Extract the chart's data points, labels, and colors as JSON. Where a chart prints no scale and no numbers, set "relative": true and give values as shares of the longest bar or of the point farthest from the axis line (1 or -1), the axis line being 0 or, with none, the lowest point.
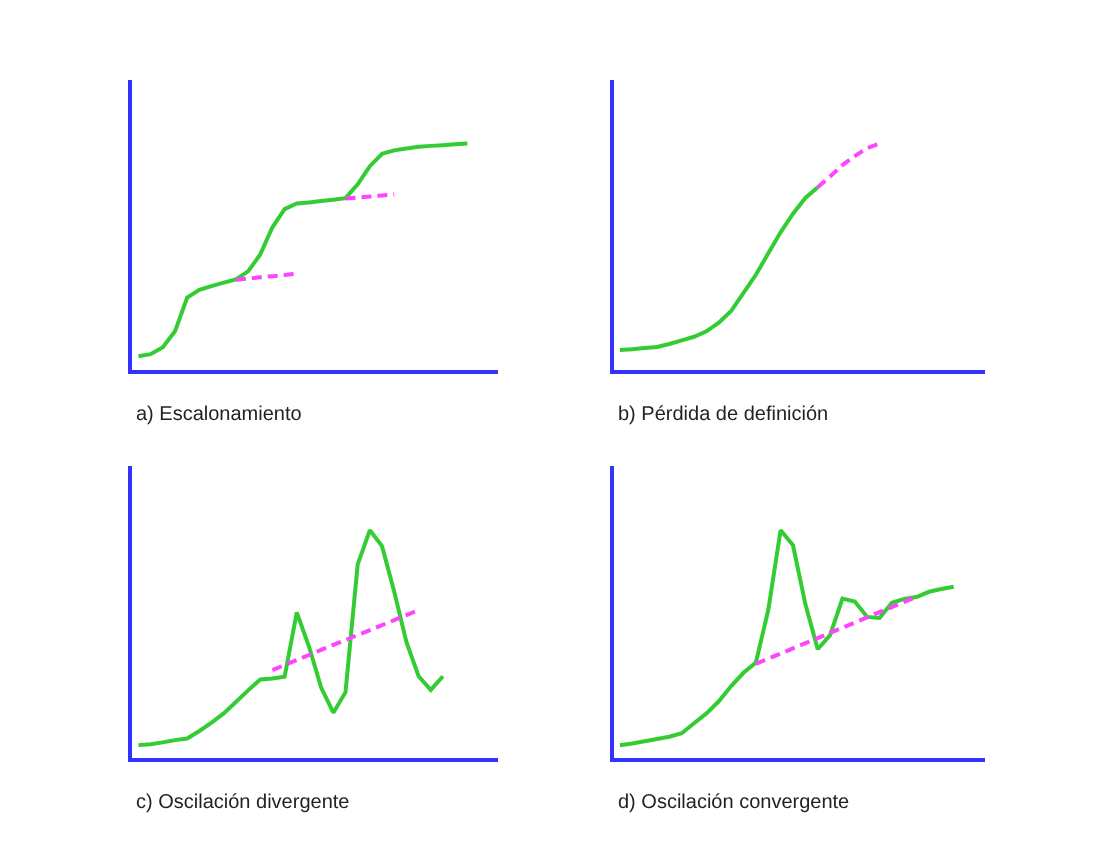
{
  "chart_data": [
    {
      "type": "line",
      "title": "a) Escalonamiento",
      "relative": true,
      "marker": "none",
      "categories": [
        null,
        null,
        null,
        null,
        null,
        null,
        null,
        null,
        null,
        null,
        null,
        null,
        null,
        null,
        null,
        null,
        null,
        null,
        null,
        null,
        null,
        null,
        null,
        null,
        null,
        null,
        null,
        null,
        null,
        null
      ],
      "series": [
        {
          "color": "#33cc33",
          "line_style": "solid",
          "values": [
            0.06,
            0.069,
            0.1,
            0.17,
            0.319,
            0.354,
            0.37,
            0.385,
            0.4,
            0.435,
            0.51,
            0.63,
            0.71,
            0.735,
            0.74,
            0.746,
            0.752,
            0.759,
            0.82,
            0.9,
            0.955,
            0.97,
            0.978,
            0.986,
            0.99,
            0.993,
            0.997,
            1.0,
            null,
            null
          ]
        },
        {
          "color": "#ff44ff",
          "line_style": "dashed",
          "values": [
            null,
            null,
            null,
            null,
            null,
            null,
            null,
            null,
            0.398,
            0.403,
            0.409,
            0.414,
            0.419,
            0.425,
            null,
            null,
            null,
            null,
            null,
            null,
            null,
            null,
            null,
            null,
            null,
            null,
            null,
            null,
            null,
            null
          ]
        },
        {
          "color": "#ff44ff",
          "line_style": "dashed",
          "values": [
            null,
            null,
            null,
            null,
            null,
            null,
            null,
            null,
            null,
            null,
            null,
            null,
            null,
            null,
            null,
            null,
            null,
            0.757,
            0.762,
            0.766,
            0.771,
            0.775,
            null,
            null,
            null,
            null,
            null,
            null,
            null,
            null
          ]
        }
      ]
    },
    {
      "type": "line",
      "title": "b) Pérdida de definición",
      "relative": true,
      "marker": "none",
      "categories": [
        null,
        null,
        null,
        null,
        null,
        null,
        null,
        null,
        null,
        null,
        null,
        null,
        null,
        null,
        null,
        null,
        null,
        null,
        null,
        null,
        null,
        null,
        null,
        null,
        null,
        null,
        null,
        null,
        null,
        null
      ],
      "series": [
        {
          "color": "#33cc33",
          "line_style": "solid",
          "values": [
            0.087,
            0.091,
            0.096,
            0.101,
            0.114,
            0.13,
            0.146,
            0.17,
            0.208,
            0.26,
            0.34,
            0.42,
            0.515,
            0.608,
            0.69,
            0.76,
            0.807,
            null,
            null,
            null,
            null,
            null,
            null,
            null,
            null,
            null,
            null,
            null,
            null,
            null
          ]
        },
        {
          "color": "#ff44ff",
          "line_style": "dashed",
          "values": [
            null,
            null,
            null,
            null,
            null,
            null,
            null,
            null,
            null,
            null,
            null,
            null,
            null,
            null,
            null,
            null,
            0.807,
            0.855,
            0.905,
            0.945,
            0.98,
            1.0,
            null,
            null,
            null,
            null,
            null,
            null,
            null,
            null
          ]
        }
      ]
    },
    {
      "type": "line",
      "title": "c) Oscilación divergente",
      "relative": true,
      "marker": "none",
      "categories": [
        null,
        null,
        null,
        null,
        null,
        null,
        null,
        null,
        null,
        null,
        null,
        null,
        null,
        null,
        null,
        null,
        null,
        null,
        null,
        null,
        null,
        null,
        null,
        null,
        null,
        null,
        null,
        null,
        null,
        null
      ],
      "series": [
        {
          "color": "#33cc33",
          "line_style": "solid",
          "values": [
            0.058,
            0.062,
            0.07,
            0.08,
            0.087,
            0.12,
            0.157,
            0.197,
            0.247,
            0.298,
            0.346,
            0.35,
            0.358,
            0.64,
            0.49,
            0.31,
            0.2,
            0.29,
            0.85,
            1.0,
            0.93,
            0.73,
            0.51,
            0.36,
            0.3,
            0.36,
            null,
            null,
            null,
            null
          ]
        },
        {
          "color": "#ff44ff",
          "line_style": "dashed",
          "values": [
            null,
            null,
            null,
            null,
            null,
            null,
            null,
            null,
            null,
            null,
            null,
            0.387,
            0.409,
            0.431,
            0.453,
            0.475,
            0.497,
            0.518,
            0.541,
            0.562,
            0.584,
            0.606,
            0.628,
            0.65,
            null,
            null,
            null,
            null,
            null,
            null
          ]
        }
      ]
    },
    {
      "type": "line",
      "title": "d) Oscilación convergente",
      "relative": true,
      "marker": "none",
      "categories": [
        null,
        null,
        null,
        null,
        null,
        null,
        null,
        null,
        null,
        null,
        null,
        null,
        null,
        null,
        null,
        null,
        null,
        null,
        null,
        null,
        null,
        null,
        null,
        null,
        null,
        null,
        null,
        null,
        null,
        null
      ],
      "series": [
        {
          "color": "#33cc33",
          "line_style": "solid",
          "values": [
            0.057,
            0.065,
            0.075,
            0.085,
            0.095,
            0.11,
            0.154,
            0.197,
            0.25,
            0.317,
            0.375,
            0.42,
            0.65,
            1.0,
            0.934,
            0.676,
            0.478,
            0.54,
            0.7,
            0.687,
            0.62,
            0.615,
            0.682,
            0.699,
            0.707,
            0.73,
            0.742,
            0.752,
            null,
            null
          ]
        },
        {
          "color": "#ff44ff",
          "line_style": "dashed",
          "values": [
            null,
            null,
            null,
            null,
            null,
            null,
            null,
            null,
            null,
            null,
            null,
            0.414,
            0.437,
            0.459,
            0.482,
            0.505,
            0.527,
            0.55,
            0.573,
            0.595,
            0.618,
            0.641,
            0.663,
            0.686,
            0.708,
            null,
            null,
            null,
            null,
            null
          ]
        }
      ]
    }
  ]
}
